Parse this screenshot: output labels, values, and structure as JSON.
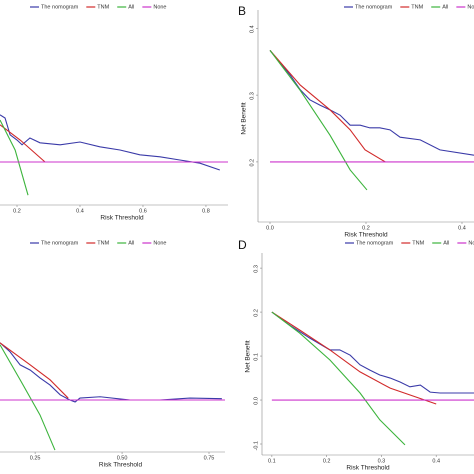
{
  "chart_data": [
    {
      "type": "line",
      "xlabel": "Risk Threshold",
      "xlim": [
        0.146,
        0.87
      ],
      "ylim": [
        -0.1,
        0.35
      ],
      "xticks": [
        0.2,
        0.4,
        0.6,
        0.8
      ],
      "series": [
        {
          "name": "The nomogram",
          "color": "#3a3aa8",
          "x": [
            0.146,
            0.162,
            0.178,
            0.2,
            0.216,
            0.241,
            0.273,
            0.337,
            0.4,
            0.463,
            0.527,
            0.59,
            0.654,
            0.717,
            0.781,
            0.844
          ],
          "values": [
            0.118,
            0.11,
            0.068,
            0.055,
            0.043,
            0.06,
            0.048,
            0.043,
            0.05,
            0.038,
            0.03,
            0.018,
            0.013,
            0.005,
            -0.003,
            -0.02
          ]
        },
        {
          "name": "TNM",
          "color": "#d12a2a",
          "x": [
            0.146,
            0.21,
            0.289
          ],
          "values": [
            0.093,
            0.055,
            0
          ]
        },
        {
          "name": "All",
          "color": "#3cb43c",
          "x": [
            0.146,
            0.194,
            0.235
          ],
          "values": [
            0.105,
            0.03,
            -0.083
          ]
        },
        {
          "name": "None",
          "color": "#cc33cc",
          "x": [
            0.146,
            0.87
          ],
          "values": [
            0,
            0
          ]
        }
      ]
    },
    {
      "type": "line",
      "label": "B",
      "xlabel": "Risk Threshold",
      "ylabel": "Net Benefit",
      "xlim": [
        -0.025,
        0.425
      ],
      "ylim": [
        0.11,
        0.42
      ],
      "xticks": [
        {
          "value": 0,
          "label": "0.0"
        },
        0.2,
        0.4
      ],
      "yticks": [
        0.2,
        0.3,
        0.4
      ],
      "series": [
        {
          "name": "The nomogram",
          "color": "#3a3aa8",
          "x": [
            0,
            0.042,
            0.063,
            0.083,
            0.104,
            0.125,
            0.146,
            0.167,
            0.188,
            0.208,
            0.229,
            0.25,
            0.271,
            0.313,
            0.354,
            0.425
          ],
          "values": [
            0.367,
            0.33,
            0.308,
            0.293,
            0.285,
            0.278,
            0.27,
            0.255,
            0.255,
            0.251,
            0.251,
            0.248,
            0.237,
            0.233,
            0.218,
            0.21
          ]
        },
        {
          "name": "TNM",
          "color": "#d12a2a",
          "x": [
            0,
            0.063,
            0.125,
            0.167,
            0.198,
            0.24
          ],
          "values": [
            0.367,
            0.315,
            0.278,
            0.248,
            0.218,
            0.2
          ]
        },
        {
          "name": "All",
          "color": "#3cb43c",
          "x": [
            0,
            0.063,
            0.125,
            0.167,
            0.202
          ],
          "values": [
            0.367,
            0.307,
            0.24,
            0.188,
            0.158
          ]
        },
        {
          "name": "None",
          "color": "#cc33cc",
          "x": [
            0,
            0.425
          ],
          "values": [
            0.2,
            0.2
          ]
        }
      ]
    },
    {
      "type": "line",
      "xlabel": "Risk Threshold",
      "xlim": [
        0.149,
        0.796
      ],
      "ylim": [
        -0.08,
        0.22
      ],
      "xticks": [
        0.25,
        {
          "value": 0.5,
          "label": "0.50"
        },
        0.75
      ],
      "series": [
        {
          "name": "The nomogram",
          "color": "#3a3aa8",
          "x": [
            0.149,
            0.178,
            0.207,
            0.236,
            0.264,
            0.293,
            0.322,
            0.35,
            0.365,
            0.379,
            0.437,
            0.523,
            0.609,
            0.695,
            0.787
          ],
          "values": [
            0.088,
            0.074,
            0.054,
            0.046,
            0.034,
            0.023,
            0.008,
            0,
            -0.003,
            0.003,
            0.005,
            0,
            0,
            0.003,
            0.002
          ]
        },
        {
          "name": "TNM",
          "color": "#d12a2a",
          "x": [
            0.149,
            0.236,
            0.293,
            0.345
          ],
          "values": [
            0.088,
            0.054,
            0.031,
            0.003
          ]
        },
        {
          "name": "All",
          "color": "#3cb43c",
          "x": [
            0.149,
            0.207,
            0.264,
            0.307
          ],
          "values": [
            0.085,
            0.031,
            -0.023,
            -0.077
          ]
        },
        {
          "name": "None",
          "color": "#cc33cc",
          "x": [
            0.149,
            0.796
          ],
          "values": [
            0,
            0
          ]
        }
      ]
    },
    {
      "type": "line",
      "label": "D",
      "xlabel": "Risk Threshold",
      "ylabel": "Net Benefit",
      "xlim": [
        0.082,
        0.469
      ],
      "ylim": [
        -0.125,
        0.323
      ],
      "xticks": [
        0.1,
        0.2,
        0.3,
        0.4
      ],
      "yticks": [
        -0.1,
        {
          "value": 0,
          "label": "0.0"
        },
        0.1,
        0.2,
        0.3
      ],
      "series": [
        {
          "name": "The nomogram",
          "color": "#3a3aa8",
          "x": [
            0.1,
            0.133,
            0.169,
            0.206,
            0.224,
            0.243,
            0.261,
            0.279,
            0.297,
            0.316,
            0.334,
            0.352,
            0.371,
            0.389,
            0.407,
            0.469
          ],
          "values": [
            0.2,
            0.17,
            0.141,
            0.114,
            0.114,
            0.102,
            0.08,
            0.068,
            0.057,
            0.05,
            0.041,
            0.03,
            0.034,
            0.018,
            0.016,
            0.016
          ]
        },
        {
          "name": "TNM",
          "color": "#d12a2a",
          "x": [
            0.1,
            0.151,
            0.206,
            0.261,
            0.316,
            0.4
          ],
          "values": [
            0.2,
            0.159,
            0.114,
            0.064,
            0.027,
            -0.009
          ]
        },
        {
          "name": "All",
          "color": "#3cb43c",
          "x": [
            0.1,
            0.151,
            0.206,
            0.261,
            0.297,
            0.343
          ],
          "values": [
            0.2,
            0.152,
            0.091,
            0.016,
            -0.045,
            -0.102
          ]
        },
        {
          "name": "None",
          "color": "#cc33cc",
          "x": [
            0.1,
            0.469
          ],
          "values": [
            0,
            0
          ]
        }
      ]
    }
  ]
}
